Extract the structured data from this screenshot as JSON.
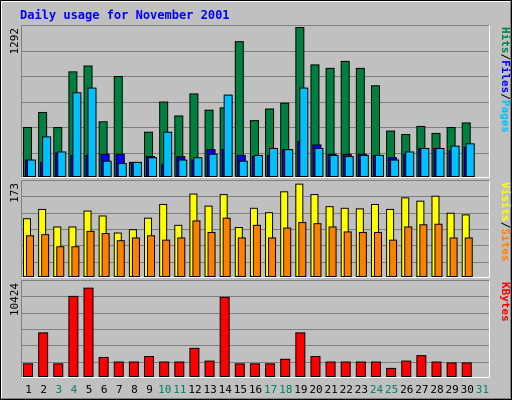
{
  "chart_data": {
    "type": "bar",
    "title": "Daily usage for November 2001",
    "categories": [
      "1",
      "2",
      "3",
      "4",
      "5",
      "6",
      "7",
      "8",
      "9",
      "10",
      "11",
      "12",
      "13",
      "14",
      "15",
      "16",
      "17",
      "18",
      "19",
      "20",
      "21",
      "22",
      "23",
      "24",
      "25",
      "26",
      "27",
      "28",
      "29",
      "30",
      "31"
    ],
    "weekend_days": [
      3,
      4,
      10,
      11,
      17,
      18,
      24,
      25,
      31
    ],
    "panels": [
      {
        "id": "top",
        "ymax": 1292,
        "ymax_label": "1292",
        "side_label_parts": [
          {
            "text": "Hits",
            "series": "hits"
          },
          {
            "text": "/",
            "series": null
          },
          {
            "text": "Files",
            "series": "files"
          },
          {
            "text": "/",
            "series": null
          },
          {
            "text": "Pages",
            "series": "pages"
          }
        ],
        "series": [
          {
            "name": "Hits",
            "key": "hits",
            "color": "#008040",
            "values": [
              430,
              560,
              430,
              910,
              960,
              480,
              870,
              130,
              390,
              650,
              530,
              720,
              580,
              600,
              1170,
              490,
              590,
              640,
              1292,
              970,
              940,
              1000,
              940,
              790,
              400,
              370,
              440,
              380,
              430,
              470,
              0
            ]
          },
          {
            "name": "Files",
            "key": "files",
            "color": "#0000ff",
            "values": [
              150,
              130,
              210,
              190,
              190,
              200,
              200,
              130,
              180,
              110,
              180,
              150,
              240,
              240,
              190,
              180,
              190,
              240,
              310,
              280,
              200,
              200,
              200,
              190,
              170,
              200,
              250,
              250,
              230,
              260,
              0
            ]
          },
          {
            "name": "Pages",
            "key": "pages",
            "color": "#00c0ff",
            "values": [
              150,
              350,
              220,
              730,
              770,
              140,
              120,
              130,
              170,
              390,
              150,
              170,
              200,
              710,
              140,
              190,
              250,
              240,
              770,
              250,
              190,
              180,
              190,
              190,
              150,
              220,
              250,
              250,
              270,
              290,
              0
            ]
          }
        ]
      },
      {
        "id": "mid",
        "ymax": 173,
        "ymax_label": "173",
        "side_label_parts": [
          {
            "text": "Visits",
            "series": "visits"
          },
          {
            "text": "/",
            "series": null
          },
          {
            "text": "Sites",
            "series": "sites"
          }
        ],
        "series": [
          {
            "name": "Visits",
            "key": "visits",
            "color": "#ffff00",
            "values": [
              107,
              124,
              92,
              92,
              121,
              112,
              81,
              87,
              108,
              133,
              95,
              152,
              130,
              151,
              91,
              126,
              118,
              156,
              170,
              151,
              129,
              126,
              125,
              133,
              124,
              145,
              139,
              148,
              117,
              114,
              0
            ]
          },
          {
            "name": "Sites",
            "key": "sites",
            "color": "#ff8000",
            "values": [
              76,
              78,
              56,
              56,
              84,
              80,
              67,
              72,
              76,
              68,
              72,
              103,
              82,
              108,
              72,
              95,
              72,
              90,
              100,
              98,
              92,
              83,
              82,
              82,
              68,
              92,
              96,
              97,
              72,
              72,
              0
            ]
          }
        ]
      },
      {
        "id": "bot",
        "ymax": 10424,
        "ymax_label": "10424",
        "side_label_parts": [
          {
            "text": "KBytes",
            "series": "kbytes"
          }
        ],
        "series": [
          {
            "name": "KBytes",
            "key": "kbytes",
            "color": "#ff0000",
            "values": [
              1500,
              4900,
              1500,
              8900,
              9800,
              2200,
              1700,
              1700,
              2300,
              1700,
              1700,
              3200,
              1800,
              8800,
              1500,
              1500,
              1500,
              2000,
              4900,
              2300,
              1700,
              1700,
              1700,
              1700,
              1000,
              1800,
              2400,
              1700,
              1600,
              1600,
              0
            ]
          }
        ]
      }
    ],
    "grid": true
  },
  "colors": {
    "background": "#c0c0c0",
    "title": "#0000ff",
    "weekday_label": "#000000",
    "weekend_label": "#00805c",
    "bar_outline": "#000000",
    "grid_line": "#808080"
  }
}
